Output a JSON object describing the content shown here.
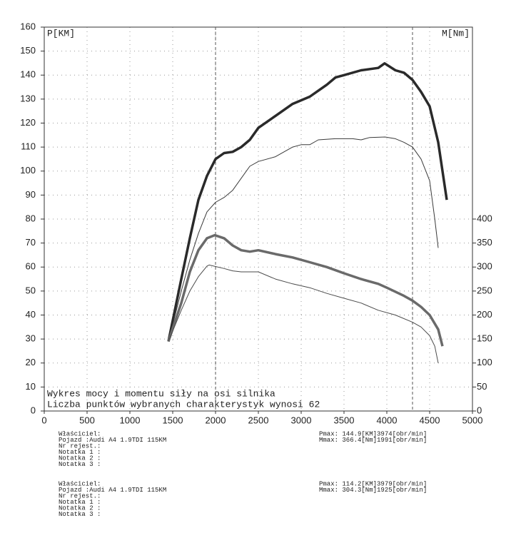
{
  "chart_data": {
    "type": "line",
    "ylabel": "P[KM]",
    "y2label": "M[Nm]",
    "annotations": [
      "Wykres mocy i momentu siły na osi silnika",
      "Liczba punktów wybranych charakterystyk wynosi 62"
    ],
    "xlim": [
      0,
      5000
    ],
    "xticks": [
      0,
      500,
      1000,
      1500,
      2000,
      2500,
      3000,
      3500,
      4000,
      4500,
      5000
    ],
    "ylim": [
      0,
      160
    ],
    "yticks": [
      0,
      10,
      20,
      30,
      40,
      50,
      60,
      70,
      80,
      90,
      100,
      110,
      120,
      130,
      140,
      150,
      160
    ],
    "y2lim": [
      0,
      800
    ],
    "y2ticks": [
      0,
      50,
      100,
      150,
      200,
      250,
      300,
      350,
      400
    ],
    "grid": true,
    "vlines": [
      2000,
      4300
    ],
    "series": [
      {
        "color": "#2a2a2a",
        "weight": "heavy",
        "x": [
          1450,
          1600,
          1700,
          1800,
          1900,
          2000,
          2100,
          2200,
          2300,
          2400,
          2500,
          2700,
          2900,
          3100,
          3300,
          3400,
          3500,
          3700,
          3900,
          3974,
          4100,
          4200,
          4300,
          4400,
          4500,
          4600,
          4700
        ],
        "values": [
          29,
          55,
          72,
          88,
          98,
          105,
          107.5,
          108,
          110,
          113,
          118,
          123,
          128,
          131,
          136,
          139,
          140,
          142,
          143,
          144.9,
          142,
          141,
          138,
          133,
          127,
          112,
          88
        ]
      },
      {
        "color": "#3a3a3a",
        "weight": "light",
        "x": [
          1450,
          1600,
          1700,
          1800,
          1900,
          2000,
          2100,
          2200,
          2300,
          2400,
          2500,
          2700,
          2900,
          3000,
          3100,
          3200,
          3400,
          3600,
          3700,
          3800,
          3979,
          4100,
          4200,
          4300,
          4400,
          4500,
          4560,
          4600
        ],
        "values": [
          29,
          50,
          63,
          74,
          83,
          87,
          89,
          92,
          97,
          102,
          104,
          106,
          110,
          111,
          111,
          113,
          113.5,
          113.5,
          113,
          114,
          114.2,
          113.5,
          112,
          110,
          105,
          96,
          80,
          68
        ]
      },
      {
        "color": "#6a6a6a",
        "weight": "heavy",
        "axis": "y2",
        "x": [
          1450,
          1600,
          1700,
          1800,
          1900,
          1991,
          2100,
          2200,
          2300,
          2400,
          2500,
          2700,
          2900,
          3100,
          3300,
          3500,
          3700,
          3900,
          4000,
          4200,
          4300,
          4400,
          4500,
          4600,
          4650
        ],
        "values": [
          145,
          225,
          290,
          335,
          360,
          366.4,
          360,
          345,
          335,
          332,
          335,
          327,
          320,
          310,
          300,
          287,
          275,
          265,
          257,
          240,
          230,
          217,
          200,
          170,
          135
        ]
      },
      {
        "color": "#4a4a4a",
        "weight": "light",
        "axis": "y2",
        "x": [
          1450,
          1600,
          1700,
          1800,
          1900,
          1925,
          2100,
          2200,
          2300,
          2500,
          2700,
          2900,
          3100,
          3300,
          3500,
          3700,
          3900,
          4100,
          4300,
          4400,
          4500,
          4560,
          4600
        ],
        "values": [
          145,
          210,
          250,
          280,
          302,
          304.3,
          297,
          292,
          290,
          290,
          275,
          265,
          257,
          245,
          235,
          225,
          210,
          200,
          185,
          175,
          157,
          135,
          100
        ]
      }
    ]
  },
  "info": [
    {
      "lines": [
        "Właściciel:",
        "Pojazd    :Audi A4 1.9TDI 115KM",
        "Nr rejest.:",
        "Notatka 1 :",
        "Notatka 2 :",
        "Notatka 3 :"
      ],
      "pmax": "Pmax: 144.9[KM]3974[obr/min]",
      "mmax": "Mmax: 366.4[Nm]1991[obr/min]"
    },
    {
      "lines": [
        "Właściciel:",
        "Pojazd    :Audi A4 1.9TDI 115KM",
        "Nr rejest.:",
        "Notatka 1 :",
        "Notatka 2 :",
        "Notatka 3 :"
      ],
      "pmax": "Pmax: 114.2[KM]3979[obr/min]",
      "mmax": "Mmax: 304.3[Nm]1925[obr/min]"
    }
  ]
}
